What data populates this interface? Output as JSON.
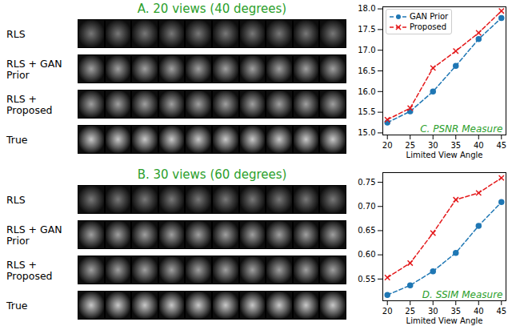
{
  "image_grids": [
    {
      "title": "A. 20 views (40 degrees)",
      "rows": [
        "RLS",
        "RLS + GAN Prior",
        "RLS + Proposed",
        "True"
      ]
    },
    {
      "title": "B. 30 views (60 degrees)",
      "rows": [
        "RLS",
        "RLS + GAN Prior",
        "RLS + Proposed",
        "True"
      ]
    }
  ],
  "chart_data": [
    {
      "type": "line",
      "title": "C. PSNR Measure",
      "x_label": "Limited View Angle",
      "x": [
        20,
        25,
        30,
        35,
        40,
        45
      ],
      "xlim": [
        19,
        46
      ],
      "xticks": [
        20,
        25,
        30,
        35,
        40,
        45
      ],
      "ylim": [
        14.95,
        18.05
      ],
      "yticks": [
        {
          "value": 15,
          "label": "15.0"
        },
        15.5,
        {
          "value": 16,
          "label": "16.0"
        },
        16.5,
        {
          "value": 17,
          "label": "17.0"
        },
        17.5,
        {
          "value": 18,
          "label": "18.0"
        }
      ],
      "grid": false,
      "legend": "upper left",
      "series": [
        {
          "name": "GAN Prior",
          "color": "#1f77b4",
          "marker": "circle",
          "line_style": "dashed",
          "values": [
            15.25,
            15.52,
            16.0,
            16.62,
            17.27,
            17.78
          ]
        },
        {
          "name": "Proposed",
          "color": "#e41a1c",
          "marker": "x",
          "line_style": "dashed",
          "values": [
            15.32,
            15.6,
            16.57,
            16.98,
            17.42,
            17.95
          ]
        }
      ]
    },
    {
      "type": "line",
      "title": "D. SSIM Measure",
      "x_label": "Limited View Angle",
      "x": [
        20,
        25,
        30,
        35,
        40,
        45
      ],
      "xlim": [
        19,
        46
      ],
      "xticks": [
        20,
        25,
        30,
        35,
        40,
        45
      ],
      "ylim": [
        0.505,
        0.77
      ],
      "yticks": [
        0.55,
        {
          "value": 0.6,
          "label": "0.60"
        },
        0.65,
        {
          "value": 0.7,
          "label": "0.70"
        },
        0.75
      ],
      "grid": false,
      "series": [
        {
          "name": "GAN Prior",
          "color": "#1f77b4",
          "marker": "circle",
          "line_style": "dashed",
          "values": [
            0.517,
            0.537,
            0.566,
            0.604,
            0.66,
            0.709
          ]
        },
        {
          "name": "Proposed",
          "color": "#e41a1c",
          "marker": "x",
          "line_style": "dashed",
          "values": [
            0.553,
            0.583,
            0.645,
            0.714,
            0.728,
            0.759
          ]
        }
      ]
    }
  ]
}
